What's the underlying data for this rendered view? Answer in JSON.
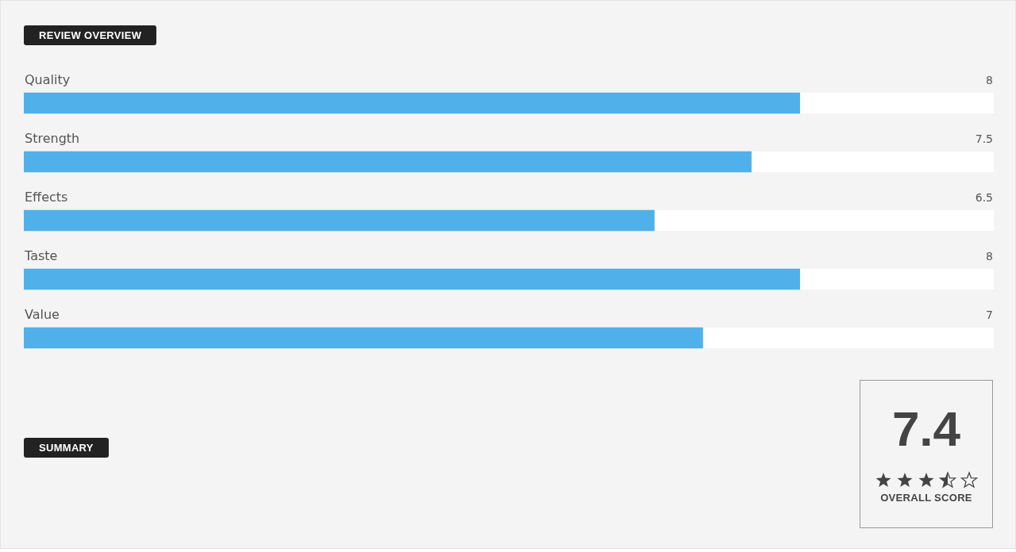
{
  "chart_data": {
    "type": "bar",
    "orientation": "horizontal",
    "title": "REVIEW OVERVIEW",
    "categories": [
      "Quality",
      "Strength",
      "Effects",
      "Taste",
      "Value"
    ],
    "values": [
      8,
      7.5,
      6.5,
      8,
      7
    ],
    "color": "#4fb0ea",
    "xlim": [
      0,
      10
    ],
    "legend": false,
    "data_labels": true,
    "annotations": [
      "SUMMARY",
      "7.4",
      "OVERALL SCORE"
    ]
  }
}
